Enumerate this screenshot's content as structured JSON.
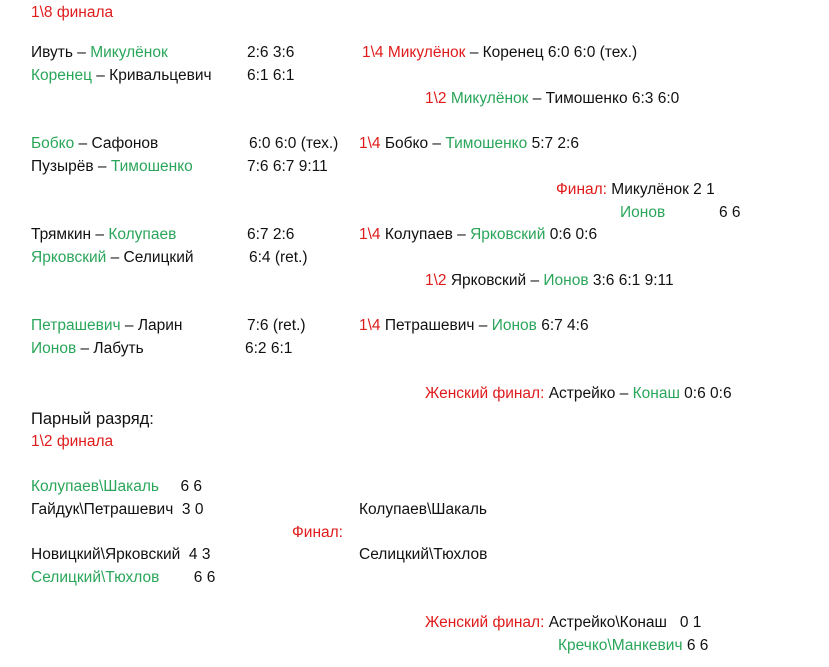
{
  "colors": {
    "red": "#e01b1b",
    "green": "#2aa65a",
    "black": "#111111"
  },
  "lines": [
    {
      "segs": [
        {
          "t": "1\\8 финала",
          "c": "r"
        }
      ]
    },
    {
      "segs": [
        {
          "t": "Ивуть – ",
          "c": "k"
        },
        {
          "t": "Микулёнок",
          "c": "g"
        }
      ]
    },
    {
      "segs": [
        {
          "t": "2:6 3:6",
          "c": "k"
        }
      ]
    },
    {
      "segs": [
        {
          "t": "1\\4 Микулёнок",
          "c": "r"
        },
        {
          "t": " – Коренец    6:0 6:0 (тех.)",
          "c": "k"
        }
      ]
    },
    {
      "segs": [
        {
          "t": "Коренец",
          "c": "g"
        },
        {
          "t": " – Кривальцевич",
          "c": "k"
        }
      ]
    },
    {
      "segs": [
        {
          "t": "6:1 6:1",
          "c": "k"
        }
      ]
    },
    {
      "segs": [
        {
          "t": "1\\2 ",
          "c": "r"
        },
        {
          "t": "Микулёнок",
          "c": "g"
        },
        {
          "t": " – Тимошенко 6:3 6:0",
          "c": "k"
        }
      ]
    },
    {
      "segs": [
        {
          "t": "Бобко",
          "c": "g"
        },
        {
          "t": " – Сафонов",
          "c": "k"
        }
      ]
    },
    {
      "segs": [
        {
          "t": "6:0 6:0 (тех.)",
          "c": "k"
        }
      ]
    },
    {
      "segs": [
        {
          "t": "1\\4 ",
          "c": "r"
        },
        {
          "t": "Бобко – ",
          "c": "k"
        },
        {
          "t": "Тимошенко",
          "c": "g"
        },
        {
          "t": " 5:7 2:6",
          "c": "k"
        }
      ]
    },
    {
      "segs": [
        {
          "t": "Пузырёв – ",
          "c": "k"
        },
        {
          "t": "Тимошенко",
          "c": "g"
        }
      ]
    },
    {
      "segs": [
        {
          "t": "7:6 6:7 9:11",
          "c": "k"
        }
      ]
    },
    {
      "segs": [
        {
          "t": "Финал:",
          "c": "r"
        },
        {
          "t": " Микулёнок  2 1",
          "c": "k"
        }
      ]
    },
    {
      "segs": [
        {
          "t": "Ионов",
          "c": "g"
        }
      ]
    },
    {
      "segs": [
        {
          "t": "6 6",
          "c": "k"
        }
      ]
    },
    {
      "segs": [
        {
          "t": "Трямкин – ",
          "c": "k"
        },
        {
          "t": "Колупаев",
          "c": "g"
        }
      ]
    },
    {
      "segs": [
        {
          "t": "6:7 2:6",
          "c": "k"
        }
      ]
    },
    {
      "segs": [
        {
          "t": "1\\4 ",
          "c": "r"
        },
        {
          "t": "Колупаев – ",
          "c": "k"
        },
        {
          "t": "Ярковский",
          "c": "g"
        },
        {
          "t": " 0:6 0:6",
          "c": "k"
        }
      ]
    },
    {
      "segs": [
        {
          "t": "Ярковский",
          "c": "g"
        },
        {
          "t": " – Селицкий",
          "c": "k"
        }
      ]
    },
    {
      "segs": [
        {
          "t": "6:4 (ret.)",
          "c": "k"
        }
      ]
    },
    {
      "segs": [
        {
          "t": "1\\2 ",
          "c": "r"
        },
        {
          "t": "Ярковский – ",
          "c": "k"
        },
        {
          "t": "Ионов",
          "c": "g"
        },
        {
          "t": " 3:6 6:1 9:11",
          "c": "k"
        }
      ]
    },
    {
      "segs": [
        {
          "t": "Петрашевич",
          "c": "g"
        },
        {
          "t": " – Ларин",
          "c": "k"
        }
      ]
    },
    {
      "segs": [
        {
          "t": "7:6 (ret.)",
          "c": "k"
        }
      ]
    },
    {
      "segs": [
        {
          "t": "1\\4 ",
          "c": "r"
        },
        {
          "t": "Петрашевич – ",
          "c": "k"
        },
        {
          "t": "Ионов",
          "c": "g"
        },
        {
          "t": " 6:7 4:6",
          "c": "k"
        }
      ]
    },
    {
      "segs": [
        {
          "t": "Ионов",
          "c": "g"
        },
        {
          "t": " – Лабуть",
          "c": "k"
        }
      ]
    },
    {
      "segs": [
        {
          "t": "6:2 6:1",
          "c": "k"
        }
      ]
    },
    {
      "segs": [
        {
          "t": "Женский финал:",
          "c": "r"
        },
        {
          "t": " Астрейко – ",
          "c": "k"
        },
        {
          "t": "Конаш",
          "c": "g"
        },
        {
          "t": " 0:6 0:6",
          "c": "k"
        }
      ]
    },
    {
      "segs": [
        {
          "t": "Парный разряд:",
          "c": "k"
        }
      ]
    },
    {
      "segs": [
        {
          "t": "1\\2 финала",
          "c": "r"
        }
      ]
    },
    {
      "segs": [
        {
          "t": "Колупаев\\Шакаль",
          "c": "g"
        },
        {
          "t": "     6 6",
          "c": "k"
        }
      ]
    },
    {
      "segs": [
        {
          "t": "Гайдук\\Петрашевич  3 0",
          "c": "k"
        }
      ]
    },
    {
      "segs": [
        {
          "t": "Колупаев\\Шакаль",
          "c": "k"
        }
      ]
    },
    {
      "segs": [
        {
          "t": "Финал:",
          "c": "r"
        }
      ]
    },
    {
      "segs": [
        {
          "t": "Новицкий\\Ярковский  4 3",
          "c": "k"
        }
      ]
    },
    {
      "segs": [
        {
          "t": "Селицкий\\Тюхлов",
          "c": "k"
        }
      ]
    },
    {
      "segs": [
        {
          "t": "Селицкий\\Тюхлов",
          "c": "g"
        },
        {
          "t": "        6 6",
          "c": "k"
        }
      ]
    },
    {
      "segs": [
        {
          "t": "Женский финал:",
          "c": "r"
        },
        {
          "t": " Астрейко\\Конаш   0 1",
          "c": "k"
        }
      ]
    },
    {
      "segs": [
        {
          "t": "Кречко\\Манкевич",
          "c": "g"
        },
        {
          "t": " 6 6",
          "c": "k"
        }
      ]
    }
  ]
}
